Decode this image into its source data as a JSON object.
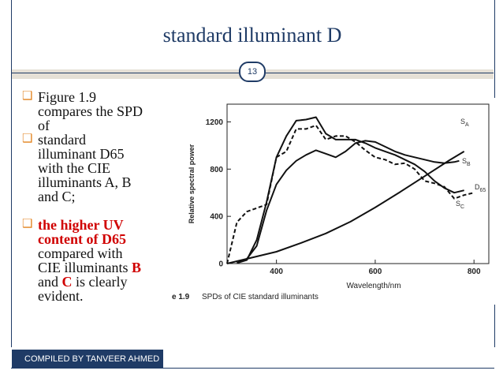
{
  "slide": {
    "title": "standard illuminant D",
    "number": "13",
    "footer": "COMPILED BY TANVEER AHMED"
  },
  "bullets": [
    {
      "lines": [
        "Figure 1.9",
        "compares the SPD",
        "of"
      ]
    },
    {
      "lines": [
        "standard",
        "illuminant D65",
        "with the CIE",
        "illuminants A, B",
        "and C;"
      ]
    }
  ],
  "bullet3": {
    "red1": "the higher UV",
    "red2": "content of D65",
    "line3": "compared with",
    "line4_pre": "CIE illuminants ",
    "line4_red": "B",
    "line5_pre": "and ",
    "line5_red": "C",
    "line5_post": " is clearly",
    "line6": "evident."
  },
  "figure": {
    "caption_num": "e 1.9",
    "caption_text": "SPDs of CIE standard illuminants"
  },
  "chart_data": {
    "type": "line",
    "xlabel": "Wavelength/nm",
    "ylabel": "Relative spectral power",
    "xlim": [
      300,
      830
    ],
    "ylim": [
      0,
      1350
    ],
    "xticks": [
      400,
      600,
      800
    ],
    "yticks": [
      0,
      400,
      800,
      1200
    ],
    "series": [
      {
        "name": "S_A",
        "values": [
          [
            300,
            0
          ],
          [
            400,
            100
          ],
          [
            450,
            175
          ],
          [
            500,
            255
          ],
          [
            550,
            355
          ],
          [
            600,
            475
          ],
          [
            650,
            605
          ],
          [
            700,
            740
          ],
          [
            750,
            875
          ],
          [
            780,
            950
          ]
        ]
      },
      {
        "name": "S_B",
        "values": [
          [
            320,
            5
          ],
          [
            340,
            40
          ],
          [
            360,
            150
          ],
          [
            380,
            450
          ],
          [
            400,
            670
          ],
          [
            420,
            790
          ],
          [
            440,
            870
          ],
          [
            460,
            920
          ],
          [
            480,
            960
          ],
          [
            500,
            930
          ],
          [
            520,
            900
          ],
          [
            540,
            950
          ],
          [
            560,
            1020
          ],
          [
            580,
            1040
          ],
          [
            600,
            1030
          ],
          [
            620,
            990
          ],
          [
            640,
            950
          ],
          [
            660,
            920
          ],
          [
            680,
            900
          ],
          [
            700,
            880
          ],
          [
            720,
            860
          ],
          [
            740,
            850
          ],
          [
            760,
            860
          ],
          [
            770,
            870
          ]
        ]
      },
      {
        "name": "S_C",
        "values": [
          [
            320,
            5
          ],
          [
            340,
            30
          ],
          [
            360,
            200
          ],
          [
            380,
            520
          ],
          [
            400,
            900
          ],
          [
            420,
            1080
          ],
          [
            440,
            1210
          ],
          [
            460,
            1220
          ],
          [
            480,
            1240
          ],
          [
            500,
            1100
          ],
          [
            520,
            1050
          ],
          [
            540,
            1050
          ],
          [
            560,
            1050
          ],
          [
            580,
            1020
          ],
          [
            600,
            980
          ],
          [
            620,
            950
          ],
          [
            640,
            920
          ],
          [
            660,
            880
          ],
          [
            680,
            840
          ],
          [
            700,
            780
          ],
          [
            720,
            700
          ],
          [
            740,
            640
          ],
          [
            760,
            600
          ],
          [
            780,
            620
          ]
        ]
      },
      {
        "name": "D_65",
        "values": [
          [
            300,
            0
          ],
          [
            320,
            350
          ],
          [
            340,
            440
          ],
          [
            360,
            470
          ],
          [
            380,
            500
          ],
          [
            400,
            900
          ],
          [
            420,
            950
          ],
          [
            440,
            1140
          ],
          [
            460,
            1140
          ],
          [
            480,
            1170
          ],
          [
            500,
            1050
          ],
          [
            520,
            1080
          ],
          [
            540,
            1080
          ],
          [
            560,
            1030
          ],
          [
            580,
            960
          ],
          [
            600,
            900
          ],
          [
            620,
            880
          ],
          [
            640,
            840
          ],
          [
            660,
            850
          ],
          [
            680,
            800
          ],
          [
            700,
            700
          ],
          [
            720,
            680
          ],
          [
            740,
            650
          ],
          [
            760,
            550
          ],
          [
            780,
            580
          ],
          [
            800,
            600
          ]
        ]
      }
    ],
    "series_labels": [
      "S",
      "A",
      "S",
      "B",
      "S",
      "C",
      "D",
      "65"
    ]
  }
}
